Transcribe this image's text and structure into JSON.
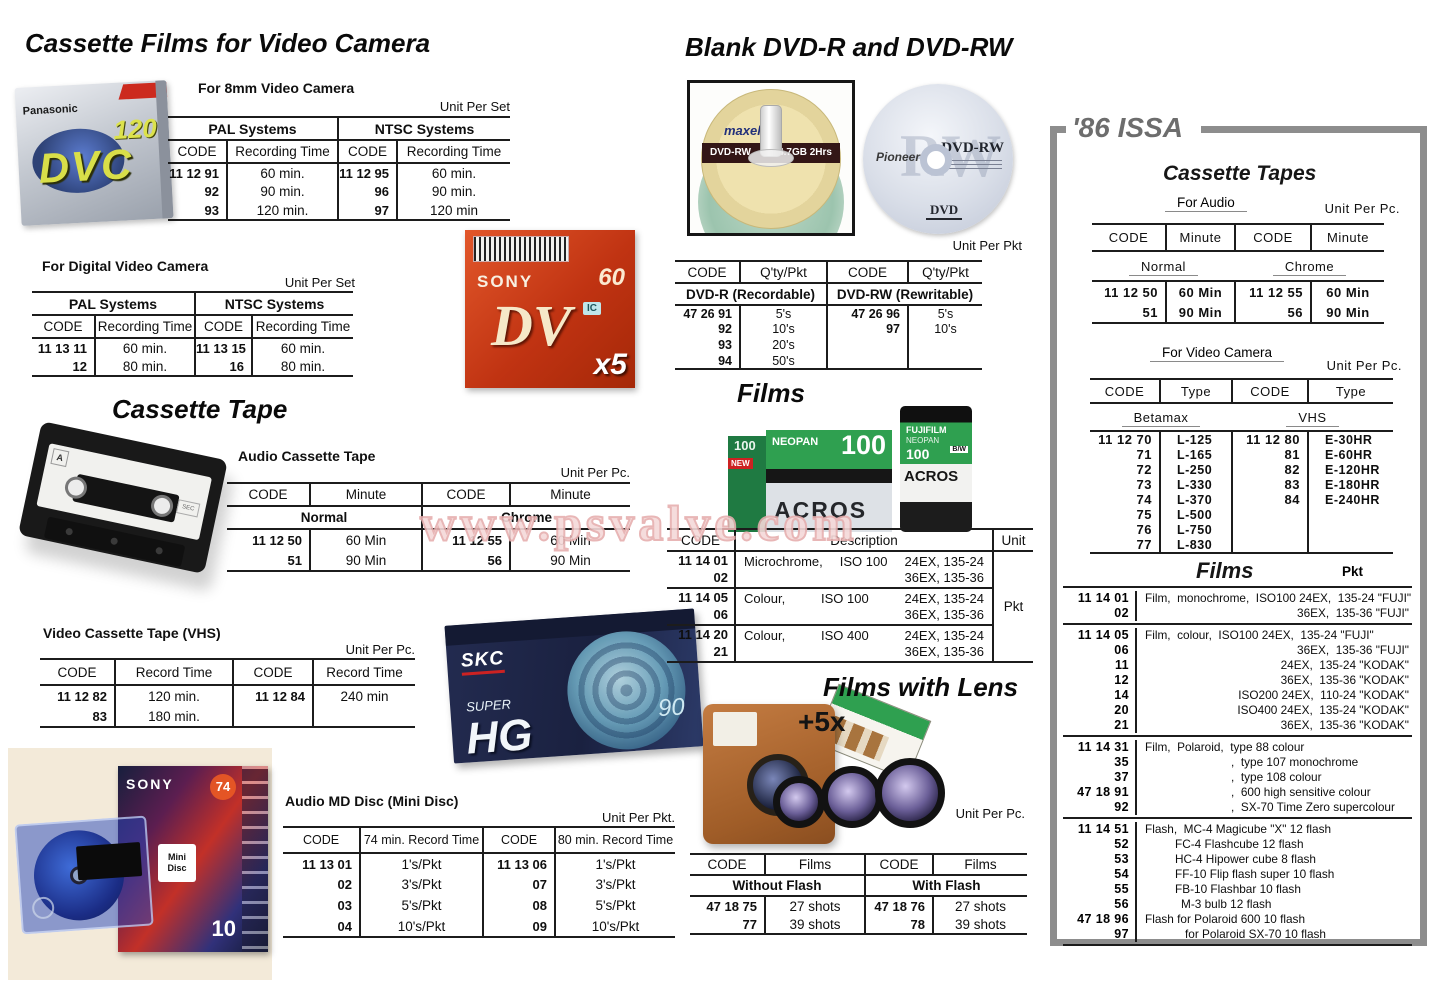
{
  "watermark": "www.psvalve.com",
  "titles": {
    "cassette_films": "Cassette Films for Video Camera",
    "cassette_tape": "Cassette Tape",
    "blank_dvd": "Blank DVD-R and DVD-RW",
    "films": "Films",
    "films_with_lens": "Films with Lens"
  },
  "left": {
    "t8mm": {
      "label": "For 8mm Video Camera",
      "unit": "Unit Per Set",
      "group1": "PAL Systems",
      "group2": "NTSC Systems",
      "col_code": "CODE",
      "col_time": "Recording Time",
      "rows": [
        [
          "11 12 91",
          "60 min.",
          "11 12 95",
          "60 min."
        ],
        [
          "92",
          "90 min.",
          "96",
          "90 min."
        ],
        [
          "93",
          "120 min.",
          "97",
          "120 min"
        ]
      ]
    },
    "tdigital": {
      "label": "For Digital Video Camera",
      "unit": "Unit Per Set",
      "group1": "PAL Systems",
      "group2": "NTSC Systems",
      "col_code": "CODE",
      "col_time": "Recording Time",
      "rows": [
        [
          "11 13 11",
          "60 min.",
          "11 13 15",
          "60 min."
        ],
        [
          "12",
          "80 min.",
          "16",
          "80 min."
        ]
      ]
    },
    "taudio": {
      "label": "Audio Cassette Tape",
      "unit": "Unit Per Pc.",
      "col_code": "CODE",
      "col_min": "Minute",
      "sub1": "Normal",
      "sub2": "Chrome",
      "rows": [
        [
          "11 12 50",
          "60 Min",
          "11 12 55",
          "60 Min"
        ],
        [
          "51",
          "90 Min",
          "56",
          "90 Min"
        ]
      ]
    },
    "tvhs": {
      "label": "Video Cassette Tape (VHS)",
      "unit": "Unit Per Pc.",
      "col_code": "CODE",
      "col_time": "Record Time",
      "rows": [
        [
          "11 12 82",
          "120 min.",
          "11 12 84",
          "240 min"
        ],
        [
          "83",
          "180 min.",
          "",
          ""
        ]
      ]
    },
    "tmd": {
      "label": "Audio MD Disc (Mini Disc)",
      "unit": "Unit Per Pkt.",
      "col_code": "CODE",
      "col_74": "74 min. Record Time",
      "col_80": "80 min. Record Time",
      "rows": [
        [
          "11 13 01",
          "1's/Pkt",
          "11 13 06",
          "1's/Pkt"
        ],
        [
          "02",
          "3's/Pkt",
          "07",
          "3's/Pkt"
        ],
        [
          "03",
          "5's/Pkt",
          "08",
          "5's/Pkt"
        ],
        [
          "04",
          "10's/Pkt",
          "09",
          "10's/Pkt"
        ]
      ]
    }
  },
  "middle": {
    "tdvd": {
      "unit": "Unit Per Pkt",
      "col_code": "CODE",
      "col_qty": "Q'ty/Pkt",
      "sub1": "DVD-R (Recordable)",
      "sub2": "DVD-RW (Rewritable)",
      "rows": [
        [
          "47 26 91",
          "5's",
          "47 26 96",
          "5's"
        ],
        [
          "92",
          "10's",
          "97",
          "10's"
        ],
        [
          "93",
          "20's",
          "",
          ""
        ],
        [
          "94",
          "50's",
          "",
          ""
        ]
      ]
    },
    "tfilms": {
      "col_code": "CODE",
      "col_desc": "Description",
      "col_unit": "Unit",
      "unit_value": "Pkt",
      "blocks": [
        {
          "code1": "11 14 01",
          "code2": "02",
          "name": "Microchrome,",
          "iso": "ISO 100",
          "ex1": "24EX, 135-24",
          "ex2": "36EX, 135-36"
        },
        {
          "code1": "11 14 05",
          "code2": "06",
          "name": "Colour,",
          "iso": "ISO 100",
          "ex1": "24EX, 135-24",
          "ex2": "36EX, 135-36"
        },
        {
          "code1": "11 14 20",
          "code2": "21",
          "name": "Colour,",
          "iso": "ISO 400",
          "ex1": "24EX, 135-24",
          "ex2": "36EX, 135-36"
        }
      ]
    },
    "plus5x": "+5x",
    "tlens": {
      "unit": "Unit Per Pc.",
      "col_code": "CODE",
      "col_films": "Films",
      "sub1": "Without Flash",
      "sub2": "With Flash",
      "rows": [
        [
          "47 18 75",
          "27 shots",
          "47 18 76",
          "27 shots"
        ],
        [
          "77",
          "39 shots",
          "78",
          "39 shots"
        ]
      ]
    }
  },
  "right": {
    "issa": "'86 ISSA",
    "title_tapes": "Cassette Tapes",
    "for_audio": "For Audio",
    "unit_pc_1": "Unit Per Pc.",
    "taudio": {
      "col_code": "CODE",
      "col_min": "Minute",
      "sub1": "Normal",
      "sub2": "Chrome",
      "rows": [
        [
          "11 12 50",
          "60 Min",
          "11 12 55",
          "60 Min"
        ],
        [
          "51",
          "90 Min",
          "56",
          "90 Min"
        ]
      ]
    },
    "for_video": "For Video Camera",
    "unit_pc_2": "Unit Per Pc.",
    "tvideo": {
      "col_code": "CODE",
      "col_type": "Type",
      "sub1": "Betamax",
      "sub2": "VHS",
      "rows": [
        [
          "11 12 70",
          "L-125",
          "11 12 80",
          "E-30HR"
        ],
        [
          "71",
          "L-165",
          "81",
          "E-60HR"
        ],
        [
          "72",
          "L-250",
          "82",
          "E-120HR"
        ],
        [
          "73",
          "L-330",
          "83",
          "E-180HR"
        ],
        [
          "74",
          "L-370",
          "84",
          "E-240HR"
        ],
        [
          "75",
          "L-500",
          "",
          ""
        ],
        [
          "76",
          "L-750",
          "",
          ""
        ],
        [
          "77",
          "L-830",
          "",
          ""
        ]
      ]
    },
    "title_films": "Films",
    "films_unit": "Pkt",
    "films_list": [
      {
        "codes": [
          "11 14 01",
          "02"
        ],
        "lines": [
          {
            "t": "Film,  monochrome,  ISO100 24EX,  135-24 \"FUJI\""
          },
          {
            "t": "36EX,  135-36 \"FUJI\"",
            "c": "r"
          }
        ]
      },
      {
        "codes": [
          "11 14 05",
          "06",
          "11",
          "12",
          "14",
          "20",
          "21"
        ],
        "lines": [
          {
            "t": "Film,  colour,  ISO100 24EX,  135-24 \"FUJI\""
          },
          {
            "t": "36EX,  135-36 \"FUJI\"",
            "c": "r"
          },
          {
            "t": "24EX,  135-24 \"KODAK\"",
            "c": "r"
          },
          {
            "t": "36EX,  135-36 \"KODAK\"",
            "c": "r"
          },
          {
            "t": "ISO200 24EX,  110-24 \"KODAK\"",
            "c": "r"
          },
          {
            "t": "ISO400 24EX,  135-24 \"KODAK\"",
            "c": "r"
          },
          {
            "t": "36EX,  135-36 \"KODAK\"",
            "c": "r"
          }
        ]
      },
      {
        "codes": [
          "11 14 31",
          "35",
          "37",
          "47 18 91",
          "92"
        ],
        "lines": [
          {
            "t": "Film,  Polaroid,  type 88 colour"
          },
          {
            "t": ",  type 107 monochrome",
            "c": "i1"
          },
          {
            "t": ",  type 108 colour",
            "c": "i1"
          },
          {
            "t": ",  600 high sensitive colour",
            "c": "i1"
          },
          {
            "t": ",  SX-70 Time Zero supercolour",
            "c": "i1"
          }
        ]
      },
      {
        "codes": [
          "11 14 51",
          "52",
          "53",
          "54",
          "55",
          "56",
          "47 18 96",
          "97"
        ],
        "lines": [
          {
            "t": "Flash,  MC-4 Magicube \"X\" 12 flash"
          },
          {
            "t": "FC-4 Flashcube 12 flash",
            "c": "i2"
          },
          {
            "t": "HC-4 Hipower cube 8 flash",
            "c": "i2"
          },
          {
            "t": "FF-10 Flip flash super 10 flash",
            "c": "i2"
          },
          {
            "t": "FB-10 Flashbar 10 flash",
            "c": "i2"
          },
          {
            "t": "M-3 bulb 12 flash",
            "c": "i3"
          },
          {
            "t": "Flash for Polaroid 600 10 flash"
          },
          {
            "t": "for Polaroid SX-70 10 flash",
            "c": "i4"
          }
        ]
      }
    ]
  },
  "images": {
    "dvc": {
      "brand": "Panasonic",
      "big": "DVC",
      "num": "120"
    },
    "sony_dv": {
      "brand": "SONY",
      "big": "DV",
      "num": "60",
      "count": "x5",
      "chip": "IC"
    },
    "cassette": {
      "corner": "A",
      "badge": "SEC"
    },
    "skc": {
      "brand": "SKC",
      "line1": "SUPER",
      "big": "HG",
      "num": "90"
    },
    "md": {
      "brand": "SONY",
      "num": "74",
      "count": "10",
      "logo": "Mini Disc"
    },
    "maxell": {
      "brand": "maxell",
      "type": "DVD-RW",
      "cap": "4.7GB",
      "hrs": "2Hrs"
    },
    "pioneer": {
      "brand": "Pioneer",
      "type": "DVD-RW",
      "logo": "DVD",
      "ghost": "RW"
    },
    "fuji": {
      "brand": "FUJIFILM",
      "film": "NEOPAN",
      "num": "100",
      "name": "ACROS",
      "bw": "B/W",
      "tab": "NEW"
    }
  }
}
